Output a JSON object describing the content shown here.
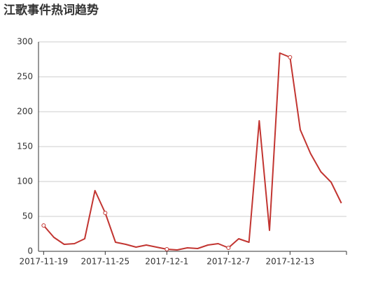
{
  "chart_data": {
    "type": "line",
    "title": "江歌事件热词趋势",
    "categories": [
      "2017-11-19",
      null,
      null,
      null,
      null,
      null,
      "2017-11-25",
      null,
      null,
      null,
      null,
      null,
      "2017-12-1",
      null,
      null,
      null,
      null,
      null,
      "2017-12-7",
      null,
      null,
      null,
      null,
      null,
      "2017-12-13",
      null,
      null,
      null,
      null,
      null
    ],
    "values": [
      37,
      20,
      10,
      11,
      18,
      87,
      55,
      13,
      10,
      6,
      9,
      6,
      3,
      2,
      5,
      4,
      9,
      11,
      5,
      18,
      13,
      187,
      30,
      284,
      278,
      174,
      140,
      114,
      99,
      69
    ],
    "color": "#c23531",
    "ylim": [
      0,
      300
    ],
    "yticks": [
      0,
      50,
      100,
      150,
      200,
      250,
      300
    ],
    "grid": true
  }
}
